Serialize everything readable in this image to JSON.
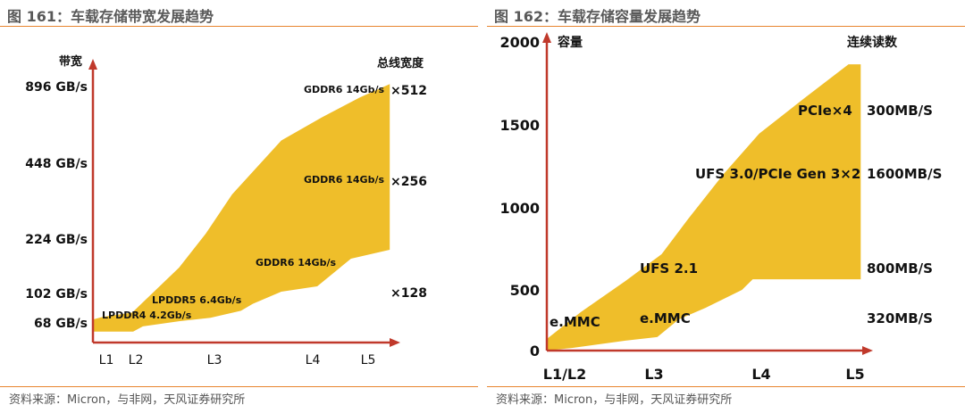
{
  "chart_data": [
    {
      "type": "area",
      "title": "图 161：车载存储带宽发展趋势",
      "source": "资料来源：Micron，与非网，天风证券研究所",
      "ylabel": "带宽",
      "y2label": "总线宽度",
      "categories": [
        "L1",
        "L2",
        "L3",
        "L4",
        "L5"
      ],
      "yticks": [
        "68 GB/s",
        "102 GB/s",
        "224 GB/s",
        "448 GB/s",
        "896 GB/s"
      ],
      "ytick_values": [
        68,
        102,
        224,
        448,
        896
      ],
      "y2ticks": [
        "×512",
        "×256",
        "×128"
      ],
      "annotations": [
        "LPDDR4  4.2Gb/s",
        "LPDDR5  6.4Gb/s",
        "GDDR6  14Gb/s",
        "GDDR6  14Gb/s",
        "GDDR6  14Gb/s"
      ],
      "band_upper": {
        "x": [
          -0.45,
          -0.12,
          0.88,
          1.55,
          1.89,
          2.18,
          2.68,
          3.16,
          3.85,
          4.39
        ],
        "y": [
          72,
          75,
          80,
          160,
          240,
          356,
          581,
          715,
          832,
          910
        ]
      },
      "band_lower": {
        "x": [
          4.39,
          3.69,
          3.08,
          2.68,
          2.39,
          2.27,
          1.95,
          1.55,
          1.09,
          0.91,
          -0.45
        ],
        "y": [
          200,
          180,
          118,
          106,
          90,
          82,
          74,
          70,
          64,
          58,
          58
        ]
      },
      "color": "#EFBE2A",
      "axis_color": "#C0392B"
    },
    {
      "type": "area",
      "title": "图 162：车载存储容量发展趋势",
      "source": "资料来源：Micron，与非网，天风证券研究所",
      "ylabel": "容量",
      "y2label": "连续读数",
      "categories": [
        "L1/L2",
        "L3",
        "L4",
        "L5"
      ],
      "yticks": [
        "0",
        "500",
        "1000",
        "1500",
        "2000"
      ],
      "ytick_values": [
        0,
        500,
        1000,
        1500,
        2000
      ],
      "ylim": [
        0,
        2000
      ],
      "y2ticks": [
        "300MB/S",
        "1600MB/S",
        "800MB/S",
        "320MB/S"
      ],
      "annotations": [
        "e.MMC",
        "e.MMC",
        "UFS 2.1",
        "UFS 3.0/PCIe Gen 3×2",
        "PCIe×4"
      ],
      "band_upper": {
        "x": [
          -0.2,
          0.18,
          0.68,
          1.07,
          1.32,
          1.65,
          1.98,
          2.46,
          2.93,
          3.06
        ],
        "y": [
          75,
          249,
          451,
          624,
          855,
          1145,
          1405,
          1636,
          1855,
          1855
        ]
      },
      "band_lower": {
        "x": [
          3.06,
          2.46,
          1.92,
          1.82,
          1.48,
          1.23,
          1.03,
          0.68,
          0.08,
          -0.2
        ],
        "y": [
          462,
          462,
          462,
          393,
          277,
          202,
          87,
          64,
          17,
          0
        ]
      },
      "color": "#EFBE2A",
      "axis_color": "#C0392B"
    }
  ]
}
